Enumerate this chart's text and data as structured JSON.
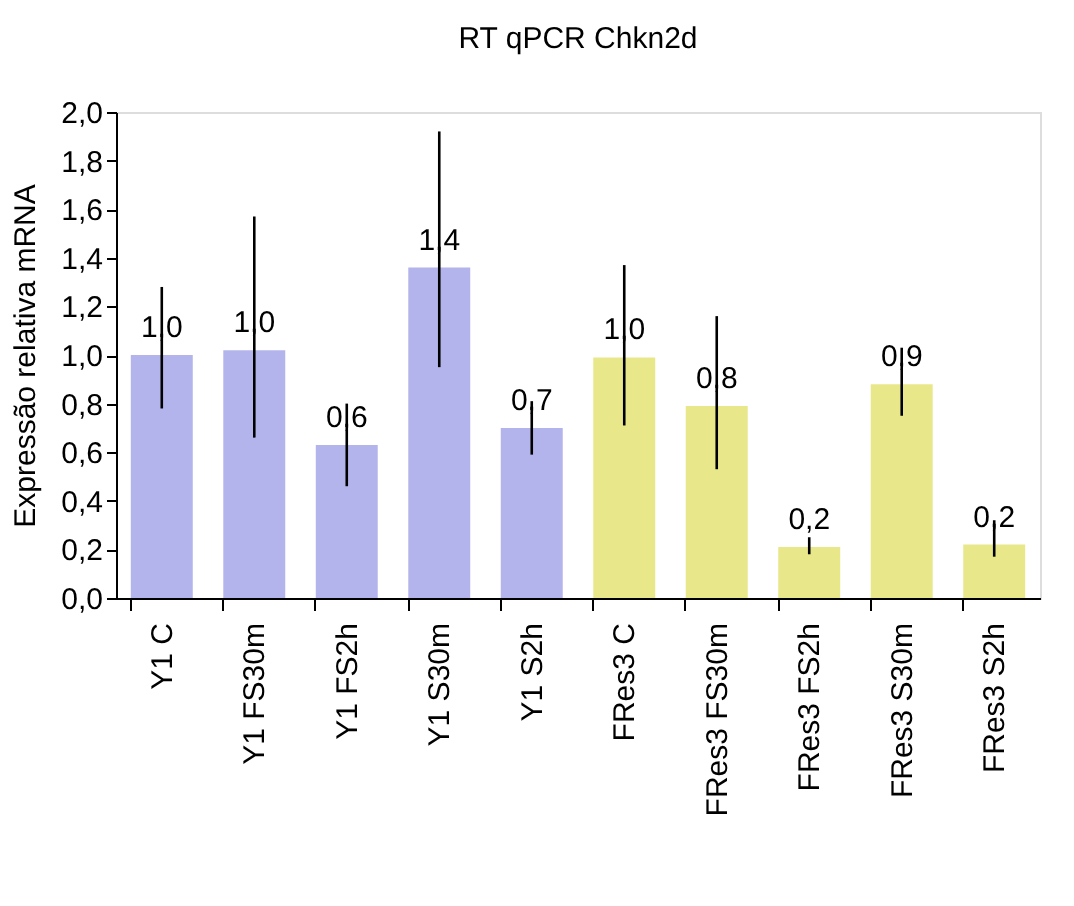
{
  "chart_data": {
    "type": "bar",
    "title": "RT qPCR Chkn2d",
    "ylabel": "Expressão relativa mRNA",
    "categories": [
      "Y1 C",
      "Y1 FS30m",
      "Y1 FS2h",
      "Y1 S30m",
      "Y1 S2h",
      "FRes3 C",
      "FRes3 FS30m",
      "FRes3 FS2h",
      "FRes3 S30m",
      "FRes3 S2h"
    ],
    "values": [
      1.0,
      1.02,
      0.63,
      1.36,
      0.7,
      0.99,
      0.79,
      0.21,
      0.88,
      0.22
    ],
    "colors": [
      "#b4b4ec",
      "#b4b4ec",
      "#b4b4ec",
      "#b4b4ec",
      "#b4b4ec",
      "#e8e88a",
      "#e8e88a",
      "#e8e88a",
      "#e8e88a",
      "#e8e88a"
    ],
    "errors": [
      [
        0.78,
        1.28
      ],
      [
        0.66,
        1.57
      ],
      [
        0.46,
        0.8
      ],
      [
        0.95,
        1.92
      ],
      [
        0.59,
        0.81
      ],
      [
        0.71,
        1.37
      ],
      [
        0.53,
        1.16
      ],
      [
        0.18,
        0.25
      ],
      [
        0.75,
        1.03
      ],
      [
        0.17,
        0.32
      ]
    ],
    "value_labels": [
      "1,0",
      "1,0",
      "0,6",
      "1,4",
      "0,7",
      "1,0",
      "0,8",
      "0,2",
      "0,9",
      "0,2"
    ],
    "ylim": [
      0,
      2
    ],
    "yticks": [
      {
        "value": 0,
        "label": "0,0"
      },
      {
        "value": 0.2,
        "label": "0,2"
      },
      {
        "value": 0.4,
        "label": "0,4"
      },
      {
        "value": 0.6,
        "label": "0,6"
      },
      {
        "value": 0.8,
        "label": "0,8"
      },
      {
        "value": 1,
        "label": "1,0"
      },
      {
        "value": 1.2,
        "label": "1,2"
      },
      {
        "value": 1.4,
        "label": "1,4"
      },
      {
        "value": 1.6,
        "label": "1,6"
      },
      {
        "value": 1.8,
        "label": "1,8"
      },
      {
        "value": 2,
        "label": "2,0"
      }
    ],
    "grid": false
  }
}
